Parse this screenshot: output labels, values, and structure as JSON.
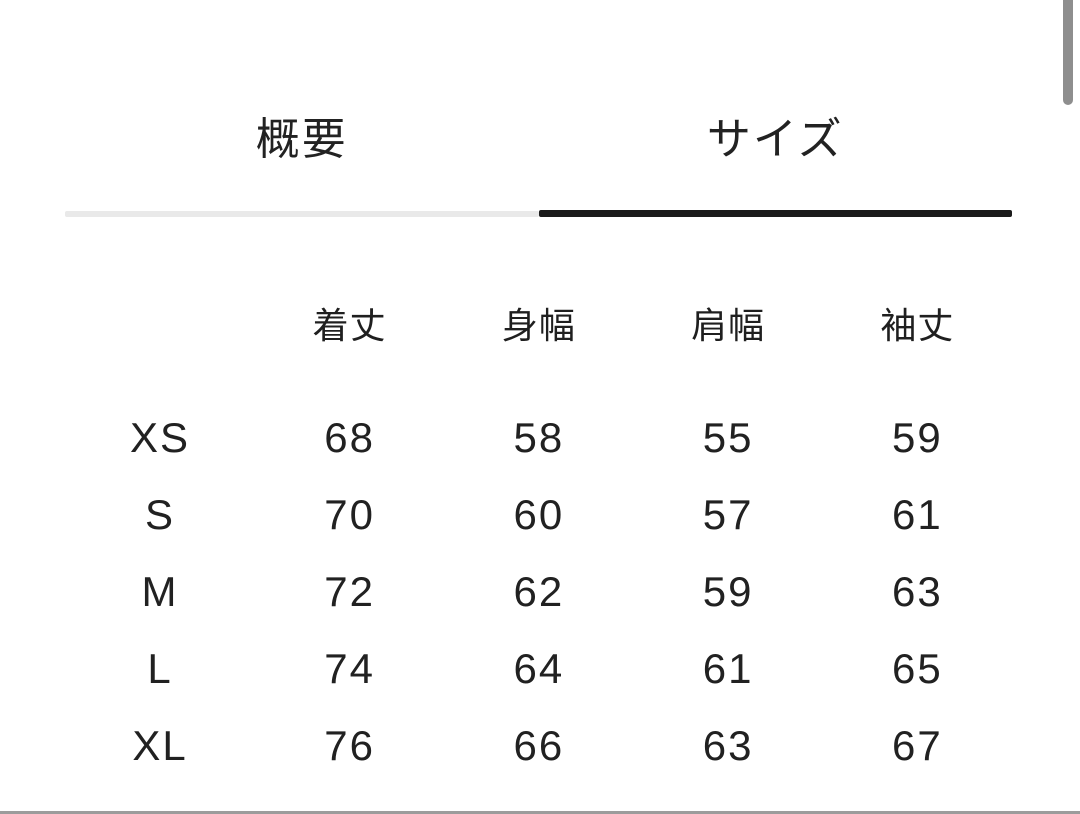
{
  "tabs": [
    {
      "label": "概要",
      "active": false
    },
    {
      "label": "サイズ",
      "active": true
    }
  ],
  "size_table": {
    "columns": [
      "着丈",
      "身幅",
      "肩幅",
      "袖丈"
    ],
    "rows": [
      {
        "size": "XS",
        "values": [
          "68",
          "58",
          "55",
          "59"
        ]
      },
      {
        "size": "S",
        "values": [
          "70",
          "60",
          "57",
          "61"
        ]
      },
      {
        "size": "M",
        "values": [
          "72",
          "62",
          "59",
          "63"
        ]
      },
      {
        "size": "L",
        "values": [
          "74",
          "64",
          "61",
          "65"
        ]
      },
      {
        "size": "XL",
        "values": [
          "76",
          "66",
          "63",
          "67"
        ]
      }
    ]
  },
  "colors": {
    "active_tab_underline": "#1b1b1b",
    "inactive_tab_underline": "#e9e9e9",
    "text": "#212121",
    "scrollbar_thumb": "#8e8e8e",
    "bottom_divider": "#9c9c9c",
    "background": "#ffffff"
  }
}
